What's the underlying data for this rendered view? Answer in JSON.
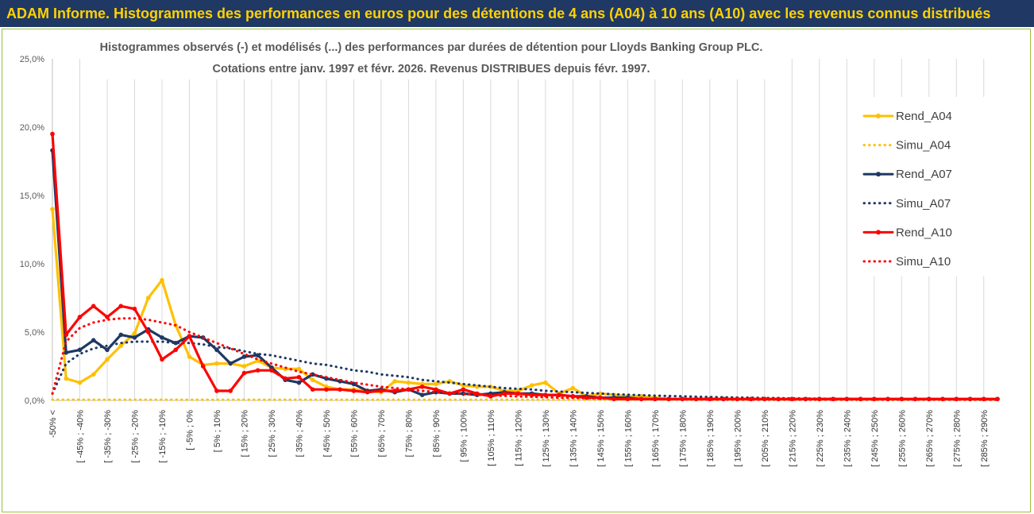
{
  "banner": {
    "title": "ADAM Informe. Histogrammes des performances en euros pour des détentions de 4 ans (A04) à 10 ans (A10) avec les revenus connus distribués"
  },
  "colors": {
    "banner_bg": "#1f3864",
    "banner_text": "#ffd200",
    "A04": "#ffc000",
    "A07": "#1f3864",
    "A10": "#ff0000",
    "grid": "#d9d9d9",
    "frame": "#9ebf3c"
  },
  "chart_data": {
    "type": "line",
    "title_line1": "Histogrammes observés (-) et modélisés (...) des performances par durées de détention pour Lloyds Banking Group PLC.",
    "title_line2": "Cotations entre janv. 1997 et févr. 2026. Revenus DISTRIBUES depuis févr. 1997.",
    "xlabel": "",
    "ylabel": "",
    "ylim": [
      0,
      25
    ],
    "y_ticks": [
      0,
      5,
      10,
      15,
      20,
      25
    ],
    "y_tick_labels": [
      "0,0%",
      "5,0%",
      "10,0%",
      "15,0%",
      "20,0%",
      "25,0%"
    ],
    "grid": "vertical",
    "legend_position": "right",
    "x_tick_labels": [
      "-50% <",
      "[ -45% ; -40%",
      "[ -35% ; -30%",
      "[ -25% ; -20%",
      "[ -15% ; -10%",
      "[ -5% ; 0%",
      "[ 5% ; 10%",
      "[ 15% ; 20%",
      "[ 25% ; 30%",
      "[ 35% ; 40%",
      "[ 45% ; 50%",
      "[ 55% ; 60%",
      "[ 65% ; 70%",
      "[ 75% ; 80%",
      "[ 85% ; 90%",
      "[ 95% ; 100%",
      "[ 105% ; 110%",
      "[ 115% ; 120%",
      "[ 125% ; 130%",
      "[ 135% ; 140%",
      "[ 145% ; 150%",
      "[ 155% ; 160%",
      "[ 165% ; 170%",
      "[ 175% ; 180%",
      "[ 185% ; 190%",
      "[ 195% ; 200%",
      "[ 205% ; 210%",
      "[ 215% ; 220%",
      "[ 225% ; 230%",
      "[ 235% ; 240%",
      "[ 245% ; 250%",
      "[ 255% ; 260%",
      "[ 265% ; 270%",
      "[ 275% ; 280%",
      "[ 285% ; 290%"
    ],
    "series": [
      {
        "name": "Rend_A04",
        "style": "solid",
        "color": "#ffc000",
        "values": [
          14.0,
          1.6,
          1.3,
          1.9,
          3.0,
          4.0,
          4.9,
          7.5,
          8.8,
          5.5,
          3.2,
          2.6,
          2.7,
          2.7,
          2.5,
          2.9,
          2.4,
          2.3,
          2.3,
          1.5,
          1.0,
          0.8,
          0.8,
          0.7,
          0.6,
          1.4,
          1.3,
          1.2,
          1.2,
          1.4,
          1.1,
          1.0,
          1.0,
          0.7,
          0.7,
          1.1,
          1.3,
          0.5,
          0.9,
          0.3,
          0.5,
          0.4,
          0.3,
          0.3,
          0.2,
          0.1,
          0.1,
          0.1,
          0.1,
          0.1,
          0.1,
          0.1,
          0.1,
          0.1,
          0.1,
          0.1,
          0.1,
          0.1,
          0.1,
          0.1,
          0.1,
          0.1,
          0.1,
          0.1,
          0.1,
          0.1,
          0.1,
          0.1,
          0.1,
          0.1
        ]
      },
      {
        "name": "Simu_A04",
        "style": "dotted",
        "color": "#ffc000",
        "values": [
          0.05,
          0.05,
          0.05,
          0.05,
          0.05,
          0.05,
          0.05,
          0.05,
          0.05,
          0.05,
          0.05,
          0.05,
          0.05,
          0.05,
          0.05,
          0.05,
          0.05,
          0.05,
          0.05,
          0.05,
          0.05,
          0.05,
          0.05,
          0.05,
          0.05,
          0.05,
          0.05,
          0.05,
          0.05,
          0.05,
          0.05,
          0.05,
          0.05,
          0.05,
          0.05,
          0.05,
          0.05,
          0.05,
          0.05,
          0.05,
          0.05,
          0.05,
          0.05,
          0.05,
          0.05,
          0.05,
          0.05,
          0.05,
          0.05,
          0.05,
          0.05,
          0.05,
          0.05,
          0.05,
          0.05,
          0.05,
          0.05,
          0.05,
          0.05,
          0.05,
          0.05,
          0.05,
          0.05,
          0.05,
          0.05,
          0.05,
          0.05,
          0.05,
          0.05,
          0.05
        ]
      },
      {
        "name": "Rend_A07",
        "style": "solid",
        "color": "#1f3864",
        "values": [
          18.3,
          3.5,
          3.7,
          4.4,
          3.7,
          4.8,
          4.6,
          5.2,
          4.6,
          4.2,
          4.7,
          4.6,
          3.7,
          2.7,
          3.2,
          3.3,
          2.4,
          1.5,
          1.3,
          1.9,
          1.6,
          1.4,
          1.2,
          0.7,
          0.8,
          0.6,
          0.8,
          0.4,
          0.6,
          0.5,
          0.5,
          0.4,
          0.5,
          0.6,
          0.5,
          0.5,
          0.4,
          0.4,
          0.3,
          0.3,
          0.2,
          0.2,
          0.2,
          0.1,
          0.1,
          0.1,
          0.1,
          0.1,
          0.1,
          0.1,
          0.1,
          0.1,
          0.1,
          0.1,
          0.1,
          0.1,
          0.1,
          0.1,
          0.1,
          0.1,
          0.1,
          0.1,
          0.1,
          0.1,
          0.1,
          0.1,
          0.1,
          0.1,
          0.1,
          0.1
        ]
      },
      {
        "name": "Simu_A07",
        "style": "dotted",
        "color": "#1f3864",
        "values": [
          0.5,
          2.7,
          3.4,
          3.8,
          4.0,
          4.2,
          4.3,
          4.3,
          4.3,
          4.2,
          4.2,
          4.1,
          3.9,
          3.8,
          3.6,
          3.4,
          3.3,
          3.1,
          2.9,
          2.7,
          2.6,
          2.4,
          2.2,
          2.1,
          1.9,
          1.8,
          1.7,
          1.5,
          1.4,
          1.3,
          1.2,
          1.1,
          1.0,
          0.9,
          0.85,
          0.8,
          0.7,
          0.65,
          0.6,
          0.55,
          0.5,
          0.45,
          0.42,
          0.38,
          0.35,
          0.32,
          0.3,
          0.27,
          0.25,
          0.23,
          0.21,
          0.2,
          0.18,
          0.17,
          0.15,
          0.14,
          0.13,
          0.12,
          0.11,
          0.1,
          0.1,
          0.09,
          0.08,
          0.08,
          0.07,
          0.07,
          0.06,
          0.06,
          0.05,
          0.05
        ]
      },
      {
        "name": "Rend_A10",
        "style": "solid",
        "color": "#ff0000",
        "values": [
          19.5,
          4.8,
          6.1,
          6.9,
          6.1,
          6.9,
          6.7,
          5.0,
          3.0,
          3.7,
          4.7,
          2.5,
          0.7,
          0.7,
          2.0,
          2.2,
          2.2,
          1.6,
          1.7,
          0.8,
          0.8,
          0.8,
          0.7,
          0.6,
          0.7,
          0.7,
          0.8,
          1.0,
          0.8,
          0.5,
          0.8,
          0.5,
          0.3,
          0.5,
          0.5,
          0.4,
          0.4,
          0.4,
          0.3,
          0.2,
          0.2,
          0.1,
          0.1,
          0.1,
          0.1,
          0.1,
          0.1,
          0.1,
          0.1,
          0.1,
          0.1,
          0.1,
          0.1,
          0.1,
          0.1,
          0.1,
          0.1,
          0.1,
          0.1,
          0.1,
          0.1,
          0.1,
          0.1,
          0.1,
          0.1,
          0.1,
          0.1,
          0.1,
          0.1,
          0.1
        ]
      },
      {
        "name": "Simu_A10",
        "style": "dotted",
        "color": "#ff0000",
        "values": [
          0.5,
          4.3,
          5.3,
          5.7,
          5.9,
          6.0,
          6.0,
          5.9,
          5.7,
          5.5,
          5.0,
          4.6,
          4.2,
          3.8,
          3.4,
          3.0,
          2.7,
          2.4,
          2.1,
          1.9,
          1.7,
          1.5,
          1.3,
          1.15,
          1.0,
          0.9,
          0.8,
          0.7,
          0.62,
          0.55,
          0.48,
          0.42,
          0.37,
          0.33,
          0.29,
          0.26,
          0.23,
          0.2,
          0.18,
          0.16,
          0.14,
          0.13,
          0.11,
          0.1,
          0.09,
          0.08,
          0.07,
          0.06,
          0.05,
          0.05,
          0.05,
          0.05,
          0.05,
          0.05,
          0.05,
          0.05,
          0.05,
          0.05,
          0.05,
          0.05,
          0.05,
          0.05,
          0.05,
          0.05,
          0.05,
          0.05,
          0.05,
          0.05,
          0.05,
          0.05
        ]
      }
    ]
  }
}
